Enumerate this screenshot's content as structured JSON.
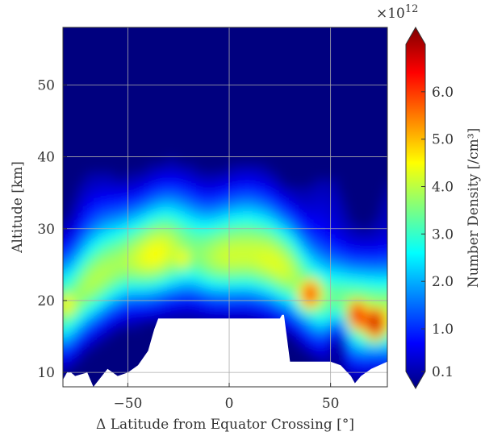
{
  "chart_data": {
    "type": "heatmap",
    "title": "",
    "xlabel": "Δ Latitude from Equator Crossing [°]",
    "ylabel": "Altitude [km]",
    "xlim": [
      -82,
      78
    ],
    "ylim": [
      8,
      58
    ],
    "x_ticks": [
      -50,
      0,
      50
    ],
    "x_tick_labels": [
      "−50",
      "0",
      "50"
    ],
    "y_ticks": [
      10,
      20,
      30,
      40,
      50
    ],
    "y_tick_labels": [
      "10",
      "20",
      "30",
      "40",
      "50"
    ],
    "grid": true,
    "colorbar": {
      "label": "Number Density [/cm³]",
      "multiplier": "×10",
      "multiplier_exp": "12",
      "range": [
        0.1,
        7.0
      ],
      "ticks": [
        0.1,
        1.0,
        2.0,
        3.0,
        4.0,
        5.0,
        6.0
      ],
      "tick_labels": [
        "0.1",
        "1.0",
        "2.0",
        "3.0",
        "4.0",
        "5.0",
        "6.0"
      ],
      "extend": "both",
      "colormap": "jet",
      "colors": [
        "#00007f",
        "#0000ff",
        "#007fff",
        "#00ffff",
        "#7fff7f",
        "#ffff00",
        "#ff7f00",
        "#ff0000",
        "#7f0000"
      ]
    },
    "peak_layer": {
      "x": [
        -80,
        -70,
        -60,
        -50,
        -40,
        -30,
        -20,
        -10,
        0,
        10,
        20,
        30,
        40,
        50,
        60,
        70,
        78
      ],
      "altitude_km": [
        19,
        22,
        24,
        25.5,
        26,
        26.5,
        26.5,
        26,
        26,
        26,
        25.5,
        24,
        21,
        19,
        18,
        18,
        18
      ]
    },
    "hot_spots": [
      {
        "x": 40,
        "altitude_km": 21,
        "value": 6.0
      },
      {
        "x": 63,
        "altitude_km": 18,
        "value": 6.5
      },
      {
        "x": 72,
        "altitude_km": 17,
        "value": 6.8
      },
      {
        "x": -80,
        "altitude_km": 19.5,
        "value": 4.6
      },
      {
        "x": -23,
        "altitude_km": 26,
        "value": 4.5
      }
    ],
    "no_data_region": {
      "x": [
        -82,
        -80,
        -78,
        -76,
        -70,
        -67,
        -60,
        -55,
        -50,
        -45,
        -40,
        -37,
        -35,
        -30,
        -20,
        -10,
        0,
        10,
        20,
        25,
        26,
        27,
        30,
        40,
        50,
        55,
        60,
        62,
        65,
        70,
        78
      ],
      "altitude_km": [
        9,
        10,
        10,
        9.5,
        10,
        8,
        10.5,
        9.5,
        10,
        11,
        13,
        16,
        17.5,
        17.5,
        17.5,
        17.5,
        17.5,
        17.5,
        17.5,
        17.5,
        18,
        18,
        11.5,
        11.5,
        11.5,
        11,
        9.5,
        8.5,
        9.5,
        10.5,
        11.5
      ]
    }
  }
}
